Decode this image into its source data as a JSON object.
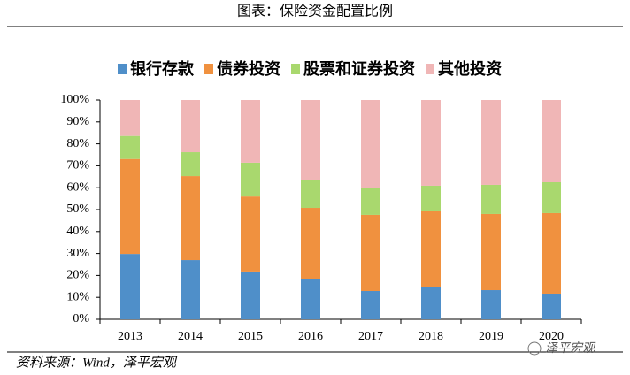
{
  "chart_data": {
    "type": "stacked_bar",
    "title": "图表：保险资金配置比例",
    "source": "资料来源：Wind，泽平宏观",
    "watermark": "泽平宏观",
    "categories": [
      "2013",
      "2014",
      "2015",
      "2016",
      "2017",
      "2018",
      "2019",
      "2020"
    ],
    "series": [
      {
        "name": "银行存款",
        "color": "#4f8fc9",
        "values": [
          29.8,
          27.0,
          21.8,
          18.5,
          12.9,
          14.9,
          13.3,
          11.7
        ]
      },
      {
        "name": "债券投资",
        "color": "#f0913f",
        "values": [
          43.3,
          38.3,
          34.2,
          32.3,
          34.7,
          34.3,
          34.7,
          36.7
        ]
      },
      {
        "name": "股票和证券投资",
        "color": "#a9d86e",
        "values": [
          10.5,
          10.9,
          15.4,
          12.9,
          12.1,
          11.7,
          13.3,
          14.1
        ]
      },
      {
        "name": "其他投资",
        "color": "#f0b6b6",
        "values": [
          16.4,
          23.8,
          28.6,
          36.3,
          40.3,
          39.1,
          38.7,
          37.5
        ]
      }
    ],
    "ylim": [
      0,
      100
    ],
    "yticks": [
      {
        "value": 0,
        "label": "0%"
      },
      {
        "value": 10,
        "label": "10%"
      },
      {
        "value": 20,
        "label": "20%"
      },
      {
        "value": 30,
        "label": "30%"
      },
      {
        "value": 40,
        "label": "40%"
      },
      {
        "value": 50,
        "label": "50%"
      },
      {
        "value": 60,
        "label": "60%"
      },
      {
        "value": 70,
        "label": "70%"
      },
      {
        "value": 80,
        "label": "80%"
      },
      {
        "value": 90,
        "label": "90%"
      },
      {
        "value": 100,
        "label": "100%"
      }
    ]
  }
}
